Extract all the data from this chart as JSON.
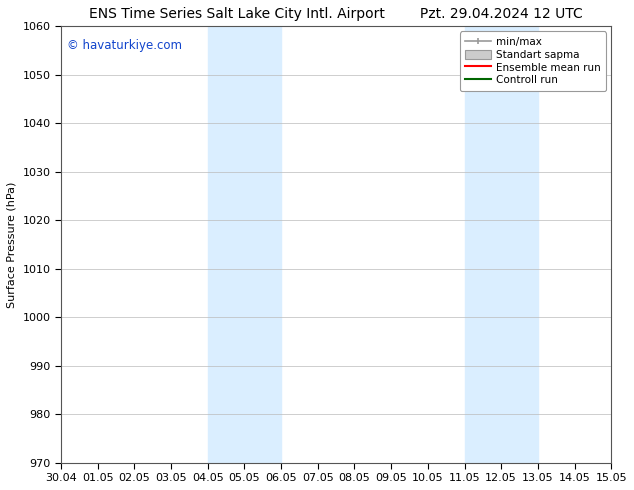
{
  "title_left": "ENS Time Series Salt Lake City Intl. Airport",
  "title_right": "Pzt. 29.04.2024 12 UTC",
  "ylabel": "Surface Pressure (hPa)",
  "ylim": [
    970,
    1060
  ],
  "yticks": [
    970,
    980,
    990,
    1000,
    1010,
    1020,
    1030,
    1040,
    1050,
    1060
  ],
  "xtick_labels": [
    "30.04",
    "01.05",
    "02.05",
    "03.05",
    "04.05",
    "05.05",
    "06.05",
    "07.05",
    "08.05",
    "09.05",
    "10.05",
    "11.05",
    "12.05",
    "13.05",
    "14.05",
    "15.05"
  ],
  "watermark": "© havaturkiye.com",
  "watermark_color": "#1144cc",
  "background_color": "#ffffff",
  "plot_bg_color": "#ffffff",
  "shaded_regions": [
    {
      "xstart": 4,
      "xend": 6,
      "color": "#daeeff"
    },
    {
      "xstart": 11,
      "xend": 13,
      "color": "#daeeff"
    }
  ],
  "title_fontsize": 10,
  "axis_fontsize": 8,
  "tick_fontsize": 8,
  "legend_fontsize": 7.5
}
